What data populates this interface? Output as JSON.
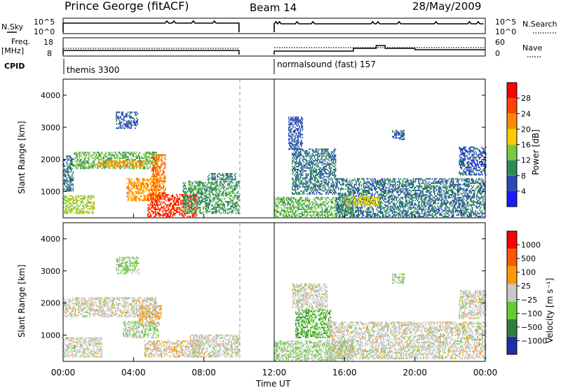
{
  "header": {
    "station": "Prince George (fitACF)",
    "beam": "Beam 14",
    "date": "28/May/2009"
  },
  "top_panels": {
    "nsky_label": "N.Sky",
    "nsky_ticks": [
      "10^5",
      "10^0"
    ],
    "nsearch_label": "N.Search",
    "nsearch_ticks": [
      "10^5",
      "10^0"
    ],
    "freq_label_line1": "Freq.",
    "freq_label_line2": "[MHz]",
    "freq_ticks": [
      "18",
      "8"
    ],
    "nave_label": "Nave",
    "nave_ticks": [
      "60",
      "0"
    ],
    "cpid_label": "CPID",
    "cpid_entries": [
      {
        "name": "themis 3300",
        "start_hour": 0
      },
      {
        "name": "normalsound (fast) 157",
        "start_hour": 12
      }
    ]
  },
  "x_axis": {
    "label": "Time UT",
    "ticks": [
      "00:00",
      "04:00",
      "08:00",
      "12:00",
      "16:00",
      "20:00",
      "00:00"
    ],
    "range_hours": [
      0,
      24
    ],
    "data_gap_hours": [
      10,
      12
    ]
  },
  "colors": {
    "power_scale": [
      "#1a1aff",
      "#2b4ab8",
      "#2e8b57",
      "#7ac943",
      "#ffcc00",
      "#ff8c00",
      "#ff4500",
      "#ff0000"
    ],
    "velocity_scale": [
      "#1e2ea8",
      "#2f7f3f",
      "#66cc33",
      "#c8c8c8",
      "#ff9900",
      "#ff5a00",
      "#ff0000"
    ]
  },
  "chart_data": [
    {
      "type": "heatmap",
      "title": "",
      "ylabel": "Slant Range [km]",
      "ylim": [
        180,
        4500
      ],
      "y_ticks": [
        "4000",
        "3000",
        "2000",
        "1000"
      ],
      "colorbar_label": "Power [dB]",
      "colorbar_ticks": [
        "28",
        "24",
        "20",
        "16",
        "12",
        "8",
        "4"
      ],
      "colorbar_range": [
        0,
        30
      ],
      "echo_regions": [
        {
          "t0": 0.0,
          "t1": 0.6,
          "r0": 1000,
          "r1": 2100,
          "value": 8
        },
        {
          "t0": 0.6,
          "t1": 5.3,
          "r0": 1700,
          "r1": 2200,
          "value": 12
        },
        {
          "t0": 2.0,
          "t1": 4.6,
          "r0": 1750,
          "r1": 1950,
          "value": 20
        },
        {
          "t0": 3.0,
          "t1": 4.2,
          "r0": 2950,
          "r1": 3450,
          "value": 6
        },
        {
          "t0": 0.0,
          "t1": 1.8,
          "r0": 300,
          "r1": 850,
          "value": 14
        },
        {
          "t0": 3.6,
          "t1": 5.5,
          "r0": 700,
          "r1": 1400,
          "value": 20
        },
        {
          "t0": 4.8,
          "t1": 7.6,
          "r0": 200,
          "r1": 900,
          "value": 26
        },
        {
          "t0": 5.0,
          "t1": 5.8,
          "r0": 900,
          "r1": 2150,
          "value": 22
        },
        {
          "t0": 6.8,
          "t1": 10.0,
          "r0": 300,
          "r1": 1300,
          "value": 10
        },
        {
          "t0": 8.2,
          "t1": 9.8,
          "r0": 1350,
          "r1": 1550,
          "value": 8
        },
        {
          "t0": 12.0,
          "t1": 16.5,
          "r0": 200,
          "r1": 800,
          "value": 12
        },
        {
          "t0": 13.0,
          "t1": 15.5,
          "r0": 900,
          "r1": 2300,
          "value": 8
        },
        {
          "t0": 12.8,
          "t1": 13.6,
          "r0": 2300,
          "r1": 3300,
          "value": 6
        },
        {
          "t0": 15.5,
          "t1": 24.0,
          "r0": 200,
          "r1": 1400,
          "value": 8
        },
        {
          "t0": 16.0,
          "t1": 18.0,
          "r0": 550,
          "r1": 850,
          "value": 16
        },
        {
          "t0": 18.7,
          "t1": 19.4,
          "r0": 2600,
          "r1": 2900,
          "value": 6
        },
        {
          "t0": 22.5,
          "t1": 24.0,
          "r0": 1500,
          "r1": 2400,
          "value": 6
        }
      ]
    },
    {
      "type": "heatmap",
      "title": "",
      "ylabel": "Slant Range [km]",
      "ylim": [
        180,
        4500
      ],
      "y_ticks": [
        "4000",
        "3000",
        "2000",
        "1000"
      ],
      "colorbar_label": "Velocity [m s⁻¹]",
      "colorbar_ticks": [
        "1000",
        "500",
        "100",
        "25",
        "−25",
        "−100",
        "−500",
        "−1000"
      ],
      "colorbar_range": [
        -1200,
        1200
      ],
      "echo_regions": [
        {
          "t0": 0.0,
          "t1": 5.3,
          "r0": 1550,
          "r1": 2150,
          "value": 0
        },
        {
          "t0": 0.0,
          "t1": 2.2,
          "r0": 300,
          "r1": 900,
          "value": 0
        },
        {
          "t0": 3.4,
          "t1": 5.4,
          "r0": 900,
          "r1": 1400,
          "value": -150
        },
        {
          "t0": 4.3,
          "t1": 5.6,
          "r0": 1300,
          "r1": 1900,
          "value": 150
        },
        {
          "t0": 4.6,
          "t1": 7.8,
          "r0": 300,
          "r1": 800,
          "value": 80
        },
        {
          "t0": 7.2,
          "t1": 10.0,
          "r0": 300,
          "r1": 1000,
          "value": 0
        },
        {
          "t0": 3.0,
          "t1": 4.3,
          "r0": 2900,
          "r1": 3400,
          "value": -200
        },
        {
          "t0": 12.0,
          "t1": 16.5,
          "r0": 200,
          "r1": 800,
          "value": -150
        },
        {
          "t0": 13.2,
          "t1": 15.2,
          "r0": 900,
          "r1": 1800,
          "value": -450
        },
        {
          "t0": 15.0,
          "t1": 24.0,
          "r0": 250,
          "r1": 1400,
          "value": 0
        },
        {
          "t0": 13.0,
          "t1": 15.0,
          "r0": 1800,
          "r1": 2600,
          "value": 0
        },
        {
          "t0": 18.7,
          "t1": 19.4,
          "r0": 2600,
          "r1": 2900,
          "value": -150
        },
        {
          "t0": 22.5,
          "t1": 24.0,
          "r0": 1500,
          "r1": 2400,
          "value": 0
        }
      ]
    }
  ]
}
